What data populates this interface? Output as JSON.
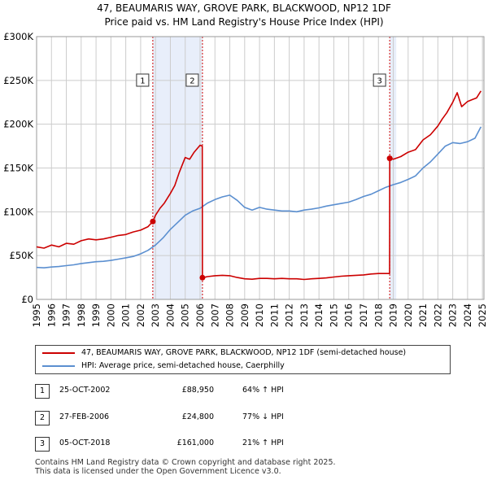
{
  "title_line1": "47, BEAUMARIS WAY, GROVE PARK, BLACKWOOD, NP12 1DF",
  "title_line2": "Price paid vs. HM Land Registry's House Price Index (HPI)",
  "colors": {
    "property": "#cc0000",
    "hpi": "#5b8fd0",
    "shade": "#e8eefa",
    "grid": "#cccccc"
  },
  "legend": {
    "property": "47, BEAUMARIS WAY, GROVE PARK, BLACKWOOD, NP12 1DF (semi-detached house)",
    "hpi": "HPI: Average price, semi-detached house, Caerphilly"
  },
  "sales": [
    {
      "num": "1",
      "date": "25-OCT-2002",
      "price": "£88,950",
      "hpi": "64% ↑ HPI"
    },
    {
      "num": "2",
      "date": "27-FEB-2006",
      "price": "£24,800",
      "hpi": "77% ↓ HPI"
    },
    {
      "num": "3",
      "date": "05-OCT-2018",
      "price": "£161,000",
      "hpi": "21% ↑ HPI"
    }
  ],
  "footer_line1": "Contains HM Land Registry data © Crown copyright and database right 2025.",
  "footer_line2": "This data is licensed under the Open Government Licence v3.0.",
  "chart_data": {
    "type": "line",
    "title": "Price paid vs. HM Land Registry's House Price Index (HPI)",
    "xlim": [
      1995,
      2025.1
    ],
    "ylim": [
      0,
      300000
    ],
    "y_ticks": [
      0,
      50000,
      100000,
      150000,
      200000,
      250000,
      300000
    ],
    "y_tick_labels": [
      "£0",
      "£50K",
      "£100K",
      "£150K",
      "£200K",
      "£250K",
      "£300K"
    ],
    "x_ticks": [
      1995,
      1996,
      1997,
      1998,
      1999,
      2000,
      2001,
      2002,
      2003,
      2004,
      2005,
      2006,
      2007,
      2008,
      2009,
      2010,
      2011,
      2012,
      2013,
      2014,
      2015,
      2016,
      2017,
      2018,
      2019,
      2020,
      2021,
      2022,
      2023,
      2024,
      2025
    ],
    "grid": true,
    "shaded_ranges": [
      [
        2002.82,
        2006.16
      ],
      [
        2018.76,
        2019.2
      ]
    ],
    "sale_markers": [
      {
        "label": "1",
        "x": 2002.82,
        "y": 88950
      },
      {
        "label": "2",
        "x": 2006.16,
        "y": 24800
      },
      {
        "label": "3",
        "x": 2018.76,
        "y": 161000
      }
    ],
    "series": [
      {
        "name": "47, BEAUMARIS WAY, GROVE PARK, BLACKWOOD, NP12 1DF (semi-detached house)",
        "color": "#cc0000",
        "x": [
          1995.0,
          1995.5,
          1996.0,
          1996.5,
          1997.0,
          1997.5,
          1998.0,
          1998.5,
          1999.0,
          1999.5,
          2000.0,
          2000.5,
          2001.0,
          2001.5,
          2002.0,
          2002.5,
          2002.82,
          2003.0,
          2003.3,
          2003.6,
          2004.0,
          2004.3,
          2004.6,
          2005.0,
          2005.3,
          2005.6,
          2006.0,
          2006.15,
          2006.16,
          2006.5,
          2007.0,
          2007.5,
          2008.0,
          2008.5,
          2009.0,
          2009.5,
          2010.0,
          2010.5,
          2011.0,
          2011.5,
          2012.0,
          2012.5,
          2013.0,
          2013.5,
          2014.0,
          2014.5,
          2015.0,
          2015.5,
          2016.0,
          2016.5,
          2017.0,
          2017.5,
          2018.0,
          2018.5,
          2018.75,
          2018.76,
          2019.0,
          2019.5,
          2020.0,
          2020.5,
          2021.0,
          2021.5,
          2022.0,
          2022.3,
          2022.6,
          2023.0,
          2023.3,
          2023.6,
          2024.0,
          2024.3,
          2024.6,
          2024.9
        ],
        "y": [
          60000,
          58500,
          62000,
          60000,
          64000,
          63000,
          67000,
          69000,
          68000,
          69000,
          71000,
          73000,
          74000,
          77000,
          79000,
          83000,
          88950,
          96000,
          104000,
          110000,
          121000,
          130000,
          145000,
          162000,
          160000,
          168000,
          176000,
          175000,
          24800,
          26000,
          27000,
          27500,
          27000,
          25000,
          23500,
          23000,
          24000,
          24000,
          23500,
          24000,
          23500,
          23500,
          22800,
          23500,
          24000,
          24500,
          25500,
          26500,
          27000,
          27500,
          28000,
          29000,
          29500,
          29500,
          29500,
          161000,
          160000,
          163000,
          168000,
          171000,
          182000,
          188000,
          198000,
          206000,
          213000,
          225000,
          236000,
          220000,
          226000,
          228000,
          230000,
          238000
        ]
      },
      {
        "name": "HPI: Average price, semi-detached house, Caerphilly",
        "color": "#5b8fd0",
        "x": [
          1995.0,
          1995.5,
          1996.0,
          1996.5,
          1997.0,
          1997.5,
          1998.0,
          1998.5,
          1999.0,
          1999.5,
          2000.0,
          2000.5,
          2001.0,
          2001.5,
          2002.0,
          2002.5,
          2003.0,
          2003.5,
          2004.0,
          2004.5,
          2005.0,
          2005.5,
          2006.0,
          2006.5,
          2007.0,
          2007.5,
          2008.0,
          2008.5,
          2009.0,
          2009.5,
          2010.0,
          2010.5,
          2011.0,
          2011.5,
          2012.0,
          2012.5,
          2013.0,
          2013.5,
          2014.0,
          2014.5,
          2015.0,
          2015.5,
          2016.0,
          2016.5,
          2017.0,
          2017.5,
          2018.0,
          2018.5,
          2019.0,
          2019.5,
          2020.0,
          2020.5,
          2021.0,
          2021.5,
          2022.0,
          2022.5,
          2023.0,
          2023.5,
          2024.0,
          2024.5,
          2024.9
        ],
        "y": [
          36500,
          36000,
          37000,
          37500,
          38500,
          39500,
          41000,
          42000,
          43000,
          43500,
          44500,
          46000,
          47500,
          49000,
          52000,
          56000,
          62000,
          70000,
          80000,
          88000,
          96000,
          101000,
          104000,
          110000,
          114000,
          117000,
          119000,
          113000,
          105000,
          102000,
          105000,
          103000,
          102000,
          101000,
          101000,
          100000,
          102000,
          103000,
          104500,
          106500,
          108000,
          109500,
          111000,
          114000,
          117500,
          120000,
          124000,
          128000,
          131000,
          133500,
          137000,
          141000,
          150000,
          157000,
          166000,
          175000,
          179000,
          178000,
          180000,
          184000,
          197000
        ]
      }
    ]
  }
}
